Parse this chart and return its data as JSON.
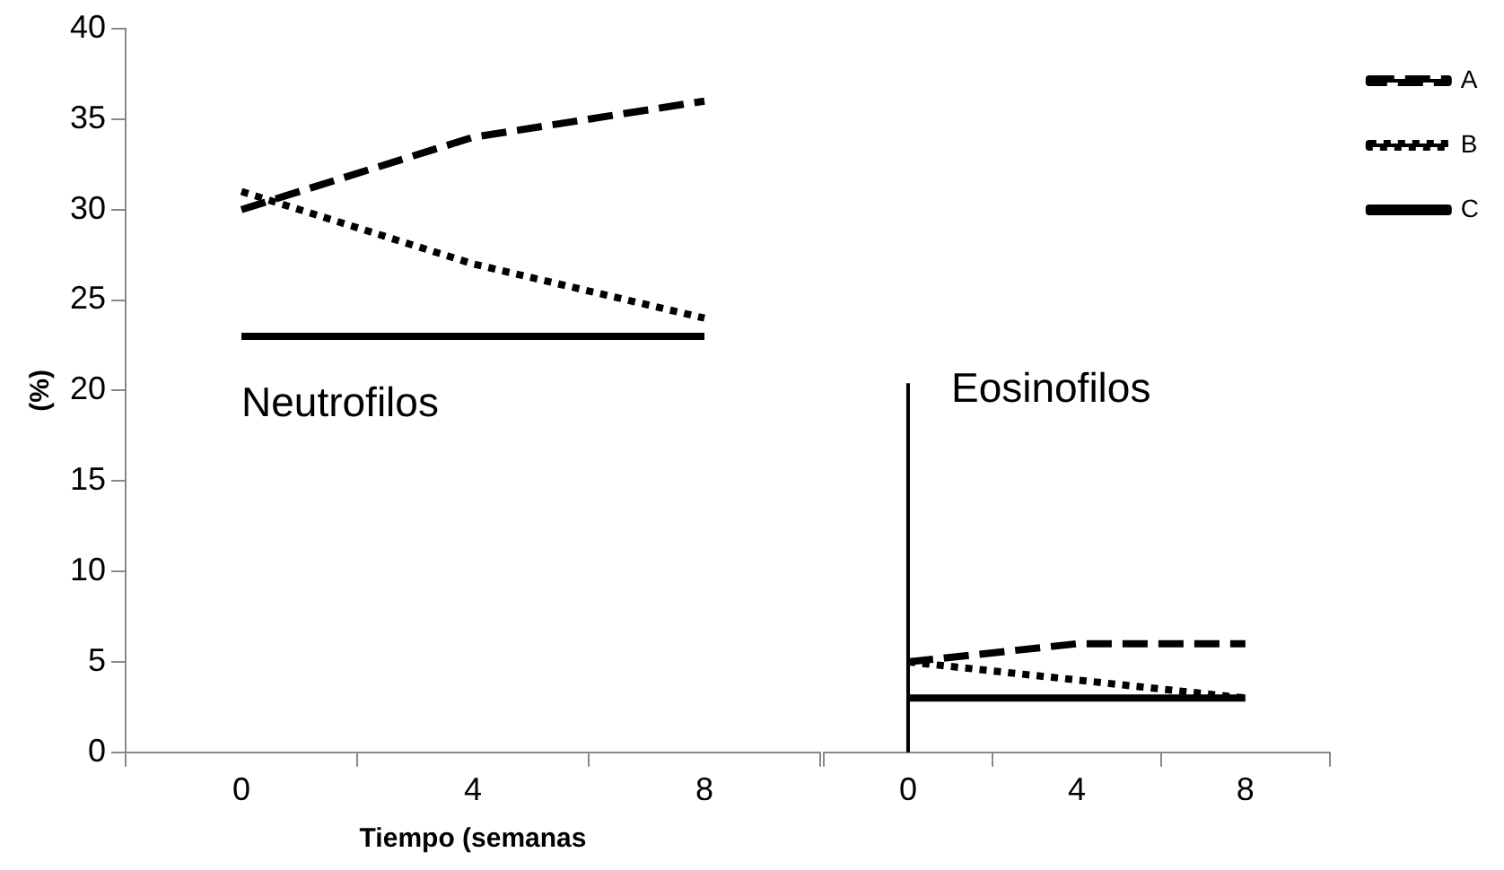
{
  "chart_data": [
    {
      "type": "line",
      "xlabel": "Tiempo (semanas",
      "ylabel": "(%)",
      "categories": [
        "0",
        "4",
        "8"
      ],
      "series": [
        {
          "color": "#000000",
          "line_style": "dashed",
          "values": [
            30,
            34,
            36
          ]
        },
        {
          "color": "#000000",
          "line_style": "dotted",
          "values": [
            31,
            27,
            24
          ]
        },
        {
          "color": "#000000",
          "line_style": "solid",
          "values": [
            23,
            23,
            23
          ]
        }
      ],
      "annotations": [
        "Neutrofilos"
      ],
      "ylim": [
        0,
        40
      ],
      "yticks": [
        0,
        5,
        10,
        15,
        20,
        25,
        30,
        35,
        40
      ],
      "grid": false,
      "marker": "none"
    },
    {
      "type": "line",
      "categories": [
        "0",
        "4",
        "8"
      ],
      "series": [
        {
          "name": "A",
          "color": "#000000",
          "line_style": "dashed",
          "values": [
            5,
            6,
            6
          ]
        },
        {
          "name": "B",
          "color": "#000000",
          "line_style": "dotted",
          "values": [
            5,
            4,
            3
          ]
        },
        {
          "name": "C",
          "color": "#000000",
          "line_style": "solid",
          "values": [
            3,
            3,
            3
          ]
        }
      ],
      "annotations": [
        "Eosinofilos"
      ],
      "ref_lines": [
        {
          "axis": "x",
          "value": "0",
          "color": "#000000"
        }
      ],
      "ylim": [
        0,
        40
      ],
      "yticks": [
        0,
        5,
        10,
        15,
        20,
        25,
        30,
        35,
        40
      ],
      "tick_labels": "x",
      "grid": false,
      "legend": "top right",
      "marker": "none"
    }
  ]
}
